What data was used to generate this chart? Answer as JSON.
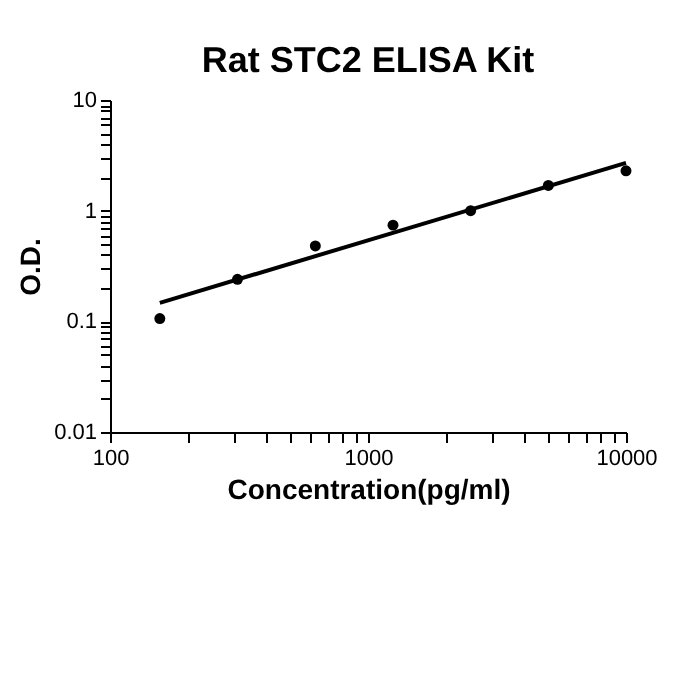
{
  "chart_data": {
    "type": "scatter",
    "title": "Rat STC2 ELISA Kit",
    "xlabel": "Concentration(pg/ml)",
    "ylabel": "O.D.",
    "log": "xy",
    "grid": false,
    "x": [
      156,
      312,
      625,
      1250,
      2500,
      5000,
      10000
    ],
    "xlim": [
      100,
      10000
    ],
    "ylim": [
      0.01,
      10
    ],
    "xticks": [
      100,
      {
        "value": 200,
        "label": null
      },
      {
        "value": 300,
        "label": null
      },
      {
        "value": 400,
        "label": null
      },
      {
        "value": 500,
        "label": null
      },
      {
        "value": 600,
        "label": null
      },
      {
        "value": 700,
        "label": null
      },
      {
        "value": 800,
        "label": null
      },
      {
        "value": 900,
        "label": null
      },
      1000,
      {
        "value": 2000,
        "label": null
      },
      {
        "value": 3000,
        "label": null
      },
      {
        "value": 4000,
        "label": null
      },
      {
        "value": 5000,
        "label": null
      },
      {
        "value": 6000,
        "label": null
      },
      {
        "value": 7000,
        "label": null
      },
      {
        "value": 8000,
        "label": null
      },
      {
        "value": 9000,
        "label": null
      },
      10000
    ],
    "yticks": [
      0.01,
      {
        "value": 0.02,
        "label": null
      },
      {
        "value": 0.03,
        "label": null
      },
      {
        "value": 0.04,
        "label": null
      },
      {
        "value": 0.05,
        "label": null
      },
      {
        "value": 0.06,
        "label": null
      },
      {
        "value": 0.07,
        "label": null
      },
      {
        "value": 0.08,
        "label": null
      },
      {
        "value": 0.09,
        "label": null
      },
      0.1,
      {
        "value": 0.2,
        "label": null
      },
      {
        "value": 0.3,
        "label": null
      },
      {
        "value": 0.4,
        "label": null
      },
      {
        "value": 0.5,
        "label": null
      },
      {
        "value": 0.6,
        "label": null
      },
      {
        "value": 0.7,
        "label": null
      },
      {
        "value": 0.8,
        "label": null
      },
      {
        "value": 0.9,
        "label": null
      },
      1,
      {
        "value": 2,
        "label": null
      },
      {
        "value": 3,
        "label": null
      },
      {
        "value": 4,
        "label": null
      },
      {
        "value": 5,
        "label": null
      },
      {
        "value": 6,
        "label": null
      },
      {
        "value": 7,
        "label": null
      },
      {
        "value": 8,
        "label": null
      },
      {
        "value": 9,
        "label": null
      },
      10
    ],
    "series": [
      {
        "marker": "circle",
        "color": "#000000",
        "values": [
          0.106,
          0.24,
          0.48,
          0.74,
          1.0,
          1.69,
          2.29
        ]
      },
      {
        "type": "line",
        "color": "#000000",
        "x": [
          156,
          10000
        ],
        "values": [
          0.147,
          2.7
        ]
      }
    ]
  }
}
